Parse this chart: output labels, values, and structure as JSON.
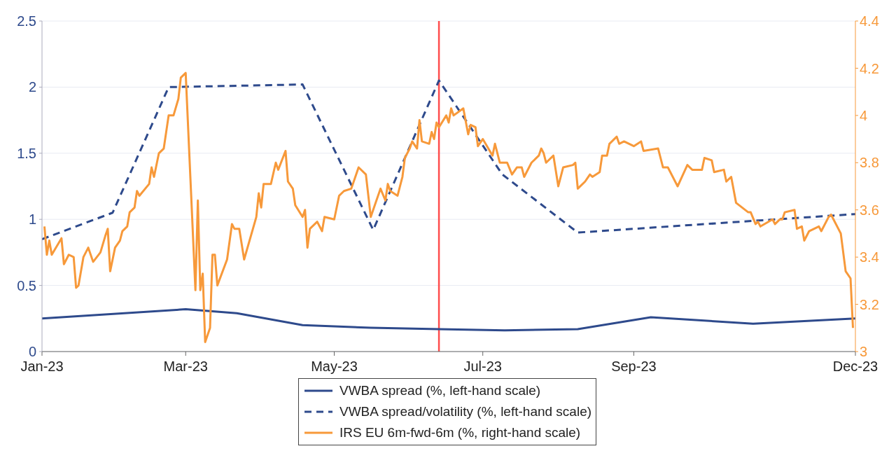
{
  "chart_data": {
    "type": "line",
    "grid": "y",
    "legend": "bottom",
    "marker": "none",
    "xlim": [
      "2023-01-01",
      "2023-12-01"
    ],
    "xticks": [
      {
        "value": "2023-01-01",
        "label": "Jan-23"
      },
      {
        "value": "2023-03-01",
        "label": "Mar-23"
      },
      {
        "value": "2023-05-01",
        "label": "May-23"
      },
      {
        "value": "2023-07-01",
        "label": "Jul-23"
      },
      {
        "value": "2023-09-01",
        "label": "Sep-23"
      },
      {
        "value": "2023-12-01",
        "label": "Dec-23"
      }
    ],
    "ylim": [
      0,
      2.5
    ],
    "yticks": [
      0,
      0.5,
      1,
      1.5,
      2,
      2.5
    ],
    "y2lim": [
      3,
      4.4
    ],
    "y2ticks": [
      3,
      3.2,
      3.4,
      3.6,
      3.8,
      4,
      4.2,
      4.4
    ],
    "ref_lines": [
      {
        "axis": "x",
        "value": "2023-06-13",
        "color": "#ff4d4d"
      }
    ],
    "series": [
      {
        "name": "VWBA spread (%, left-hand scale)",
        "color": "#2e4a8c",
        "line_style": "solid",
        "x": [
          "2023-01-01",
          "2023-03-01",
          "2023-03-22",
          "2023-04-18",
          "2023-05-16",
          "2023-06-13",
          "2023-07-10",
          "2023-08-09",
          "2023-09-08",
          "2023-10-20",
          "2023-12-01"
        ],
        "values": [
          0.25,
          0.32,
          0.29,
          0.2,
          0.18,
          0.17,
          0.16,
          0.17,
          0.26,
          0.21,
          0.25
        ]
      },
      {
        "name": "VWBA spread/volatility (%, left-hand scale)",
        "color": "#2e4a8c",
        "line_style": "dashed",
        "x": [
          "2023-01-01",
          "2023-01-30",
          "2023-02-22",
          "2023-04-18",
          "2023-05-17",
          "2023-06-13",
          "2023-07-09",
          "2023-08-09",
          "2023-12-01"
        ],
        "values": [
          0.85,
          1.05,
          2.0,
          2.02,
          0.92,
          2.05,
          1.34,
          0.9,
          1.04
        ]
      },
      {
        "name": "IRS EU 6m-fwd-6m (%, right-hand scale)",
        "color": "#f7993a",
        "line_style": "solid",
        "axis": "y2",
        "x": [
          "2023-01-02",
          "2023-01-03",
          "2023-01-04",
          "2023-01-05",
          "2023-01-09",
          "2023-01-10",
          "2023-01-12",
          "2023-01-14",
          "2023-01-15",
          "2023-01-16",
          "2023-01-18",
          "2023-01-20",
          "2023-01-22",
          "2023-01-25",
          "2023-01-27",
          "2023-01-28",
          "2023-01-29",
          "2023-01-31",
          "2023-02-02",
          "2023-02-03",
          "2023-02-05",
          "2023-02-06",
          "2023-02-08",
          "2023-02-09",
          "2023-02-10",
          "2023-02-14",
          "2023-02-15",
          "2023-02-16",
          "2023-02-18",
          "2023-02-20",
          "2023-02-22",
          "2023-02-24",
          "2023-02-26",
          "2023-02-27",
          "2023-03-01",
          "2023-03-05",
          "2023-03-06",
          "2023-03-07",
          "2023-03-08",
          "2023-03-09",
          "2023-03-11",
          "2023-03-12",
          "2023-03-13",
          "2023-03-14",
          "2023-03-18",
          "2023-03-20",
          "2023-03-21",
          "2023-03-23",
          "2023-03-25",
          "2023-03-30",
          "2023-03-31",
          "2023-04-01",
          "2023-04-02",
          "2023-04-05",
          "2023-04-07",
          "2023-04-08",
          "2023-04-11",
          "2023-04-12",
          "2023-04-14",
          "2023-04-15",
          "2023-04-18",
          "2023-04-19",
          "2023-04-20",
          "2023-04-21",
          "2023-04-24",
          "2023-04-26",
          "2023-04-27",
          "2023-05-01",
          "2023-05-03",
          "2023-05-05",
          "2023-05-08",
          "2023-05-11",
          "2023-05-14",
          "2023-05-16",
          "2023-05-18",
          "2023-05-20",
          "2023-05-22",
          "2023-05-23",
          "2023-05-24",
          "2023-05-27",
          "2023-05-29",
          "2023-05-30",
          "2023-06-01",
          "2023-06-02",
          "2023-06-04",
          "2023-06-05",
          "2023-06-06",
          "2023-06-09",
          "2023-06-10",
          "2023-06-11",
          "2023-06-12",
          "2023-06-13",
          "2023-06-16",
          "2023-06-17",
          "2023-06-18",
          "2023-06-19",
          "2023-06-23",
          "2023-06-25",
          "2023-06-26",
          "2023-06-28",
          "2023-06-29",
          "2023-07-01",
          "2023-07-05",
          "2023-07-06",
          "2023-07-08",
          "2023-07-11",
          "2023-07-13",
          "2023-07-15",
          "2023-07-17",
          "2023-07-18",
          "2023-07-21",
          "2023-07-24",
          "2023-07-25",
          "2023-07-26",
          "2023-07-27",
          "2023-07-30",
          "2023-08-01",
          "2023-08-03",
          "2023-08-07",
          "2023-08-08",
          "2023-08-09",
          "2023-08-12",
          "2023-08-14",
          "2023-08-15",
          "2023-08-18",
          "2023-08-19",
          "2023-08-21",
          "2023-08-22",
          "2023-08-25",
          "2023-08-26",
          "2023-08-28",
          "2023-09-01",
          "2023-09-04",
          "2023-09-05",
          "2023-09-11",
          "2023-09-13",
          "2023-09-15",
          "2023-09-19",
          "2023-09-23",
          "2023-09-25",
          "2023-09-29",
          "2023-09-30",
          "2023-10-03",
          "2023-10-04",
          "2023-10-08",
          "2023-10-09",
          "2023-10-11",
          "2023-10-13",
          "2023-10-18",
          "2023-10-19",
          "2023-10-21",
          "2023-10-22",
          "2023-10-23",
          "2023-10-28",
          "2023-10-29",
          "2023-10-31",
          "2023-11-01",
          "2023-11-02",
          "2023-11-06",
          "2023-11-07",
          "2023-11-09",
          "2023-11-10",
          "2023-11-12",
          "2023-11-16",
          "2023-11-17",
          "2023-11-20",
          "2023-11-21",
          "2023-11-25",
          "2023-11-27",
          "2023-11-29",
          "2023-11-30"
        ],
        "values": [
          3.53,
          3.41,
          3.47,
          3.41,
          3.48,
          3.37,
          3.41,
          3.4,
          3.27,
          3.28,
          3.4,
          3.44,
          3.38,
          3.42,
          3.49,
          3.52,
          3.34,
          3.44,
          3.47,
          3.51,
          3.53,
          3.59,
          3.61,
          3.68,
          3.66,
          3.71,
          3.78,
          3.74,
          3.84,
          3.86,
          4.0,
          4.0,
          4.07,
          4.16,
          4.18,
          3.26,
          3.64,
          3.26,
          3.33,
          3.04,
          3.1,
          3.41,
          3.41,
          3.28,
          3.39,
          3.54,
          3.52,
          3.52,
          3.39,
          3.57,
          3.67,
          3.61,
          3.71,
          3.71,
          3.8,
          3.77,
          3.85,
          3.72,
          3.69,
          3.62,
          3.57,
          3.6,
          3.44,
          3.52,
          3.55,
          3.51,
          3.57,
          3.56,
          3.66,
          3.68,
          3.69,
          3.78,
          3.75,
          3.57,
          3.63,
          3.69,
          3.64,
          3.71,
          3.68,
          3.66,
          3.74,
          3.82,
          3.86,
          3.89,
          3.86,
          3.98,
          3.89,
          3.88,
          3.93,
          3.9,
          3.97,
          3.95,
          4.0,
          3.97,
          4.03,
          4.0,
          4.03,
          3.92,
          3.96,
          3.95,
          3.87,
          3.9,
          3.83,
          3.88,
          3.8,
          3.8,
          3.75,
          3.78,
          3.78,
          3.74,
          3.8,
          3.83,
          3.86,
          3.84,
          3.8,
          3.83,
          3.7,
          3.78,
          3.79,
          3.8,
          3.69,
          3.72,
          3.75,
          3.74,
          3.76,
          3.83,
          3.83,
          3.88,
          3.91,
          3.88,
          3.89,
          3.87,
          3.89,
          3.85,
          3.86,
          3.78,
          3.78,
          3.7,
          3.79,
          3.77,
          3.77,
          3.82,
          3.81,
          3.76,
          3.77,
          3.72,
          3.74,
          3.63,
          3.59,
          3.59,
          3.54,
          3.55,
          3.53,
          3.56,
          3.54,
          3.56,
          3.56,
          3.59,
          3.6,
          3.52,
          3.53,
          3.47,
          3.51,
          3.53,
          3.51,
          3.57,
          3.58,
          3.5,
          3.34,
          3.31,
          3.1
        ]
      }
    ]
  }
}
